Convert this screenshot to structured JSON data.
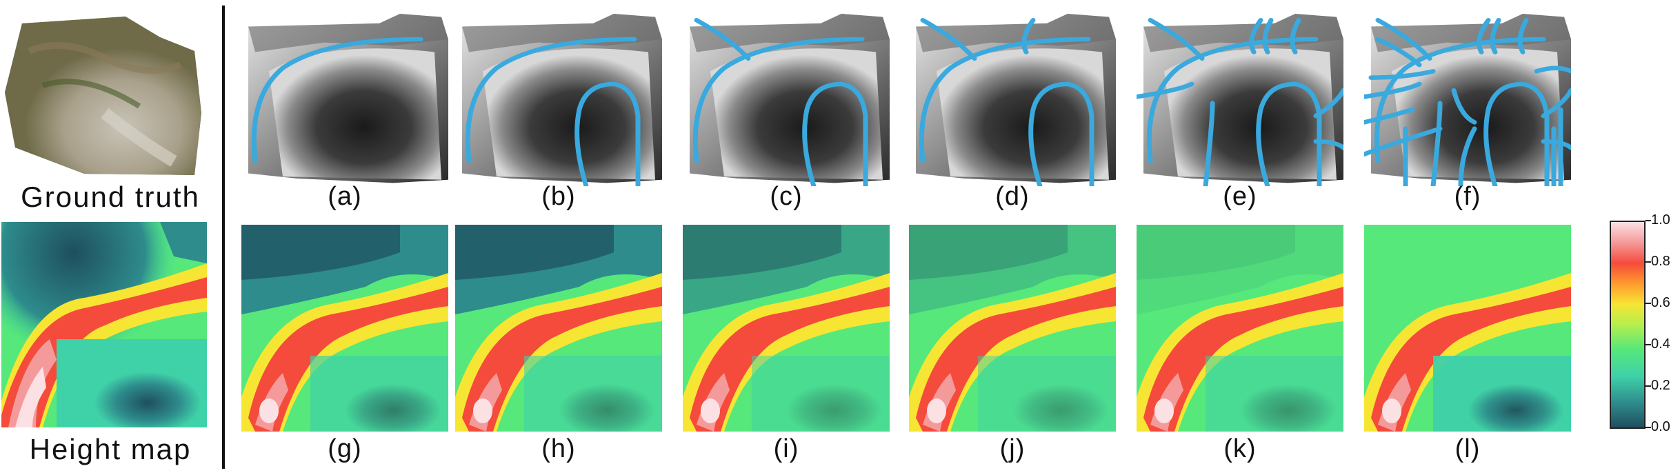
{
  "left_panel": {
    "ground_truth_label": "Ground truth",
    "height_map_label": "Height map"
  },
  "top_row": [
    {
      "label": "(a)",
      "sketch_strokes": 1
    },
    {
      "label": "(b)",
      "sketch_strokes": 2
    },
    {
      "label": "(c)",
      "sketch_strokes": 3
    },
    {
      "label": "(d)",
      "sketch_strokes": 4
    },
    {
      "label": "(e)",
      "sketch_strokes": 10
    },
    {
      "label": "(f)",
      "sketch_strokes": 20
    }
  ],
  "bottom_row": [
    {
      "label": "(g)"
    },
    {
      "label": "(h)"
    },
    {
      "label": "(i)"
    },
    {
      "label": "(j)"
    },
    {
      "label": "(k)"
    },
    {
      "label": "(l)"
    }
  ],
  "colorbar": {
    "ticks": [
      "1.0",
      "0.8",
      "0.6",
      "0.4",
      "0.2",
      "0.0"
    ],
    "min": 0.0,
    "max": 1.0,
    "colors": [
      "#1e4f5e",
      "#2e8c8c",
      "#3fd1a8",
      "#56e87a",
      "#b5ee4e",
      "#f7e534",
      "#ff9a2e",
      "#f54b3c",
      "#f59a9a",
      "#fbe1e4"
    ]
  },
  "colors": {
    "sketch_stroke": "#3aa9dd",
    "divider": "#111111"
  }
}
